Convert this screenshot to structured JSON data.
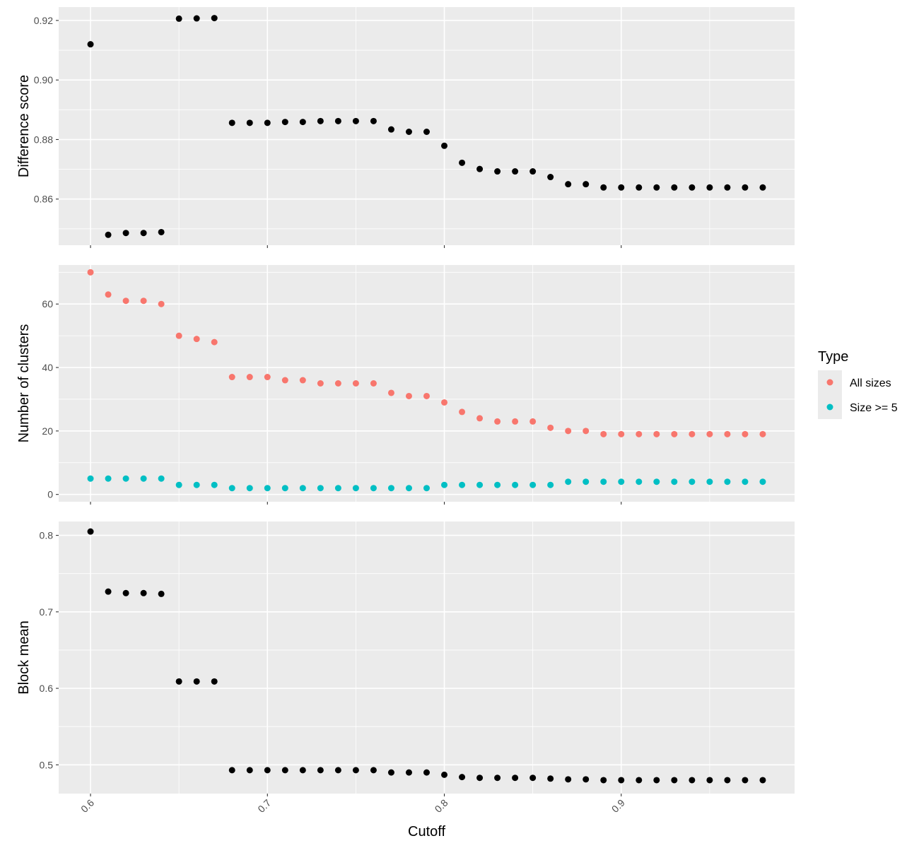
{
  "chart_data": {
    "type": "scatter",
    "x": [
      0.6,
      0.61,
      0.62,
      0.63,
      0.64,
      0.65,
      0.66,
      0.67,
      0.68,
      0.69,
      0.7,
      0.71,
      0.72,
      0.73,
      0.74,
      0.75,
      0.76,
      0.77,
      0.78,
      0.79,
      0.8,
      0.81,
      0.82,
      0.83,
      0.84,
      0.85,
      0.86,
      0.87,
      0.88,
      0.89,
      0.9,
      0.91,
      0.92,
      0.93,
      0.94,
      0.95,
      0.96,
      0.97,
      0.98
    ],
    "xlabel": "Cutoff",
    "xlim": [
      0.582,
      0.998
    ],
    "xticks": [
      0.6,
      0.7,
      0.8,
      0.9
    ],
    "xtick_labels": [
      "0.6",
      "0.7",
      "0.8",
      "0.9"
    ],
    "grid": true,
    "legend": {
      "title": "Type",
      "placement": "right",
      "entries": [
        {
          "label": "All sizes",
          "color": "#F8766D"
        },
        {
          "label": "Size >= 5",
          "color": "#00BFC4"
        }
      ]
    },
    "panels": [
      {
        "ylabel": "Difference score",
        "ylim": [
          0.8445,
          0.9245
        ],
        "yticks": [
          0.86,
          0.88,
          0.9,
          0.92
        ],
        "ytick_labels": [
          "0.86",
          "0.88",
          "0.90",
          "0.92"
        ],
        "series": [
          {
            "color": "#000000",
            "values": [
              0.912,
              0.848,
              0.8486,
              0.8486,
              0.8489,
              0.9206,
              0.9207,
              0.9208,
              0.8856,
              0.8856,
              0.8856,
              0.8859,
              0.8859,
              0.8862,
              0.8862,
              0.8862,
              0.8862,
              0.8834,
              0.8826,
              0.8826,
              0.8779,
              0.8722,
              0.8701,
              0.8693,
              0.8693,
              0.8693,
              0.8674,
              0.865,
              0.865,
              0.8639,
              0.8639,
              0.8639,
              0.8639,
              0.8639,
              0.8639,
              0.8639,
              0.8639,
              0.8639,
              0.8639
            ]
          }
        ]
      },
      {
        "ylabel": "Number of clusters",
        "ylim": [
          -2.3,
          72.3
        ],
        "yticks": [
          0,
          20,
          40,
          60
        ],
        "ytick_labels": [
          "0",
          "20",
          "40",
          "60"
        ],
        "series": [
          {
            "name": "All sizes",
            "color": "#F8766D",
            "values": [
              70,
              63,
              61,
              61,
              60,
              50,
              49,
              48,
              37,
              37,
              37,
              36,
              36,
              35,
              35,
              35,
              35,
              32,
              31,
              31,
              29,
              26,
              24,
              23,
              23,
              23,
              21,
              20,
              20,
              19,
              19,
              19,
              19,
              19,
              19,
              19,
              19,
              19,
              19
            ]
          },
          {
            "name": "Size >= 5",
            "color": "#00BFC4",
            "values": [
              5,
              5,
              5,
              5,
              5,
              3,
              3,
              3,
              2,
              2,
              2,
              2,
              2,
              2,
              2,
              2,
              2,
              2,
              2,
              2,
              3,
              3,
              3,
              3,
              3,
              3,
              3,
              4,
              4,
              4,
              4,
              4,
              4,
              4,
              4,
              4,
              4,
              4,
              4
            ]
          }
        ]
      },
      {
        "ylabel": "Block mean",
        "ylim": [
          0.4624,
          0.8181
        ],
        "yticks": [
          0.5,
          0.6,
          0.7,
          0.8
        ],
        "ytick_labels": [
          "0.5",
          "0.6",
          "0.7",
          "0.8"
        ],
        "series": [
          {
            "color": "#000000",
            "values": [
              0.805,
              0.7265,
              0.7245,
              0.7245,
              0.7235,
              0.609,
              0.609,
              0.609,
              0.493,
              0.493,
              0.493,
              0.493,
              0.493,
              0.493,
              0.493,
              0.493,
              0.493,
              0.49,
              0.49,
              0.49,
              0.487,
              0.484,
              0.483,
              0.483,
              0.483,
              0.483,
              0.482,
              0.481,
              0.481,
              0.48,
              0.48,
              0.48,
              0.48,
              0.48,
              0.48,
              0.48,
              0.48,
              0.48,
              0.48
            ]
          }
        ]
      }
    ]
  }
}
